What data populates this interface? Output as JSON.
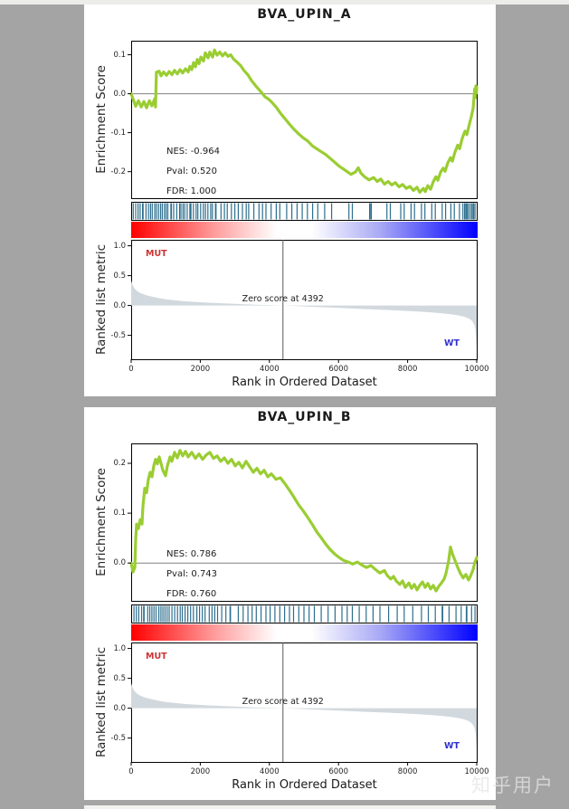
{
  "page": {
    "background_color": "#a4a4a4",
    "card_color": "#ffffff",
    "watermark": "知乎用户"
  },
  "shared": {
    "xlabel": "Rank in Ordered Dataset",
    "es_ylabel": "Enrichment Score",
    "metric_ylabel": "Ranked list metric",
    "pos_label": "MUT",
    "neg_label": "WT",
    "zero_label": "Zero score at 4392",
    "zero_rank": 4392,
    "xmax": 10000,
    "xticks": [
      0,
      2000,
      4000,
      6000,
      8000,
      10000
    ],
    "metric_yticks": [
      1.0,
      0.5,
      0.0,
      -0.5
    ],
    "metric_ylim": [
      -0.9,
      1.1
    ],
    "colors": {
      "es_line": "#9ACD32",
      "hits": "#2d6e8e",
      "area": "#d2d9de",
      "zero_line": "#808080",
      "vline": "#5a5a5a",
      "mut": "#cc3333",
      "wt": "#3333cc",
      "gradient": [
        "#ff0000",
        "#ff9c9c",
        "#ffffff",
        "#a8a8f5",
        "#0000ff"
      ]
    },
    "ranked_metric": [
      [
        0,
        0.42
      ],
      [
        30,
        0.36
      ],
      [
        70,
        0.31
      ],
      [
        120,
        0.27
      ],
      [
        200,
        0.23
      ],
      [
        300,
        0.2
      ],
      [
        450,
        0.17
      ],
      [
        600,
        0.15
      ],
      [
        800,
        0.125
      ],
      [
        1000,
        0.105
      ],
      [
        1250,
        0.088
      ],
      [
        1570,
        0.07
      ],
      [
        1900,
        0.057
      ],
      [
        2300,
        0.045
      ],
      [
        2700,
        0.035
      ],
      [
        3150,
        0.024
      ],
      [
        3600,
        0.014
      ],
      [
        4000,
        0.007
      ],
      [
        4392,
        0.0
      ],
      [
        4800,
        -0.01
      ],
      [
        5300,
        -0.022
      ],
      [
        5800,
        -0.035
      ],
      [
        6300,
        -0.048
      ],
      [
        6800,
        -0.06
      ],
      [
        7300,
        -0.072
      ],
      [
        7800,
        -0.085
      ],
      [
        8300,
        -0.1
      ],
      [
        8700,
        -0.115
      ],
      [
        9000,
        -0.13
      ],
      [
        9300,
        -0.15
      ],
      [
        9500,
        -0.168
      ],
      [
        9650,
        -0.19
      ],
      [
        9780,
        -0.22
      ],
      [
        9870,
        -0.26
      ],
      [
        9930,
        -0.32
      ],
      [
        9960,
        -0.4
      ],
      [
        9980,
        -0.5
      ],
      [
        9990,
        -0.6
      ],
      [
        10000,
        -0.72
      ]
    ]
  },
  "chart_data": [
    {
      "type": "line",
      "title": "BVA_UPIN_A",
      "stats": {
        "nes": "NES: -0.964",
        "pval": "Pval: 0.520",
        "fdr": "FDR: 1.000"
      },
      "es_yticks": [
        0.1,
        0.0,
        -0.1,
        -0.2
      ],
      "es_ylim": [
        -0.268,
        0.136
      ],
      "es_curve": [
        [
          0,
          0.0
        ],
        [
          60,
          -0.015
        ],
        [
          130,
          -0.032
        ],
        [
          210,
          -0.018
        ],
        [
          290,
          -0.034
        ],
        [
          370,
          -0.02
        ],
        [
          445,
          -0.036
        ],
        [
          525,
          -0.018
        ],
        [
          600,
          -0.031
        ],
        [
          680,
          -0.013
        ],
        [
          705,
          -0.034
        ],
        [
          730,
          0.055
        ],
        [
          810,
          0.058
        ],
        [
          865,
          0.046
        ],
        [
          940,
          0.056
        ],
        [
          1020,
          0.047
        ],
        [
          1100,
          0.057
        ],
        [
          1180,
          0.049
        ],
        [
          1255,
          0.06
        ],
        [
          1335,
          0.051
        ],
        [
          1415,
          0.062
        ],
        [
          1490,
          0.053
        ],
        [
          1570,
          0.064
        ],
        [
          1650,
          0.056
        ],
        [
          1700,
          0.07
        ],
        [
          1755,
          0.062
        ],
        [
          1805,
          0.08
        ],
        [
          1860,
          0.069
        ],
        [
          1910,
          0.088
        ],
        [
          1965,
          0.077
        ],
        [
          2015,
          0.094
        ],
        [
          2095,
          0.084
        ],
        [
          2145,
          0.105
        ],
        [
          2225,
          0.092
        ],
        [
          2275,
          0.107
        ],
        [
          2355,
          0.094
        ],
        [
          2410,
          0.112
        ],
        [
          2485,
          0.099
        ],
        [
          2565,
          0.107
        ],
        [
          2645,
          0.097
        ],
        [
          2720,
          0.105
        ],
        [
          2800,
          0.096
        ],
        [
          2880,
          0.1
        ],
        [
          2960,
          0.089
        ],
        [
          3065,
          0.081
        ],
        [
          3170,
          0.072
        ],
        [
          3270,
          0.059
        ],
        [
          3375,
          0.049
        ],
        [
          3480,
          0.034
        ],
        [
          3615,
          0.019
        ],
        [
          3745,
          0.006
        ],
        [
          3875,
          -0.008
        ],
        [
          3980,
          -0.014
        ],
        [
          4060,
          -0.021
        ],
        [
          4190,
          -0.034
        ],
        [
          4320,
          -0.05
        ],
        [
          4450,
          -0.064
        ],
        [
          4580,
          -0.078
        ],
        [
          4710,
          -0.091
        ],
        [
          4845,
          -0.103
        ],
        [
          4975,
          -0.113
        ],
        [
          5105,
          -0.121
        ],
        [
          5235,
          -0.133
        ],
        [
          5365,
          -0.141
        ],
        [
          5630,
          -0.156
        ],
        [
          5840,
          -0.172
        ],
        [
          6020,
          -0.186
        ],
        [
          6205,
          -0.197
        ],
        [
          6360,
          -0.207
        ],
        [
          6490,
          -0.201
        ],
        [
          6570,
          -0.19
        ],
        [
          6650,
          -0.204
        ],
        [
          6755,
          -0.213
        ],
        [
          6885,
          -0.221
        ],
        [
          7015,
          -0.215
        ],
        [
          7120,
          -0.225
        ],
        [
          7225,
          -0.219
        ],
        [
          7330,
          -0.232
        ],
        [
          7435,
          -0.225
        ],
        [
          7540,
          -0.234
        ],
        [
          7645,
          -0.228
        ],
        [
          7750,
          -0.239
        ],
        [
          7855,
          -0.233
        ],
        [
          7960,
          -0.243
        ],
        [
          8065,
          -0.238
        ],
        [
          8170,
          -0.248
        ],
        [
          8270,
          -0.24
        ],
        [
          8350,
          -0.253
        ],
        [
          8455,
          -0.243
        ],
        [
          8510,
          -0.251
        ],
        [
          8585,
          -0.236
        ],
        [
          8665,
          -0.245
        ],
        [
          8745,
          -0.225
        ],
        [
          8820,
          -0.213
        ],
        [
          8875,
          -0.222
        ],
        [
          8955,
          -0.201
        ],
        [
          9030,
          -0.191
        ],
        [
          9085,
          -0.199
        ],
        [
          9160,
          -0.178
        ],
        [
          9240,
          -0.164
        ],
        [
          9295,
          -0.173
        ],
        [
          9370,
          -0.15
        ],
        [
          9450,
          -0.132
        ],
        [
          9505,
          -0.141
        ],
        [
          9580,
          -0.114
        ],
        [
          9660,
          -0.096
        ],
        [
          9715,
          -0.105
        ],
        [
          9790,
          -0.077
        ],
        [
          9845,
          -0.058
        ],
        [
          9895,
          -0.038
        ],
        [
          9920,
          -0.012
        ],
        [
          9940,
          0.012
        ],
        [
          9958,
          -0.01
        ],
        [
          9975,
          0.02
        ],
        [
          9990,
          0.002
        ],
        [
          10000,
          0.016
        ]
      ],
      "hits": [
        60,
        130,
        200,
        260,
        330,
        345,
        430,
        500,
        560,
        610,
        680,
        730,
        790,
        850,
        900,
        960,
        1010,
        1060,
        1150,
        1165,
        1230,
        1320,
        1400,
        1440,
        1500,
        1550,
        1620,
        1700,
        1730,
        1800,
        1880,
        1930,
        2010,
        2090,
        2150,
        2220,
        2300,
        2350,
        2440,
        2455,
        2600,
        2700,
        2780,
        2900,
        3000,
        3100,
        3220,
        3330,
        3400,
        3550,
        3700,
        3800,
        3900,
        4050,
        4200,
        4300,
        4500,
        4650,
        4800,
        4950,
        5100,
        5250,
        5400,
        5600,
        5800,
        6300,
        6400,
        6900,
        6915,
        6950,
        7400,
        7500,
        7800,
        7900,
        8100,
        8200,
        8400,
        8500,
        8700,
        8800,
        9000,
        9100,
        9250,
        9350,
        9500,
        9600,
        9650,
        9662,
        9700,
        9712,
        9750,
        9800,
        9850,
        9862,
        9900,
        9912,
        9950
      ]
    },
    {
      "type": "line",
      "title": "BVA_UPIN_B",
      "stats": {
        "nes": "NES: 0.786",
        "pval": "Pval: 0.743",
        "fdr": "FDR: 0.760"
      },
      "es_yticks": [
        0.2,
        0.1,
        0.0
      ],
      "es_ylim": [
        -0.076,
        0.24
      ],
      "es_curve": [
        [
          0,
          0.0
        ],
        [
          52,
          -0.018
        ],
        [
          105,
          -0.009
        ],
        [
          131,
          0.047
        ],
        [
          157,
          0.078
        ],
        [
          209,
          0.069
        ],
        [
          262,
          0.087
        ],
        [
          314,
          0.078
        ],
        [
          340,
          0.114
        ],
        [
          393,
          0.15
        ],
        [
          445,
          0.141
        ],
        [
          497,
          0.168
        ],
        [
          550,
          0.182
        ],
        [
          602,
          0.173
        ],
        [
          654,
          0.195
        ],
        [
          707,
          0.208
        ],
        [
          759,
          0.199
        ],
        [
          811,
          0.213
        ],
        [
          864,
          0.2
        ],
        [
          916,
          0.186
        ],
        [
          995,
          0.175
        ],
        [
          1047,
          0.195
        ],
        [
          1126,
          0.213
        ],
        [
          1178,
          0.204
        ],
        [
          1257,
          0.222
        ],
        [
          1335,
          0.211
        ],
        [
          1414,
          0.226
        ],
        [
          1492,
          0.215
        ],
        [
          1571,
          0.224
        ],
        [
          1649,
          0.213
        ],
        [
          1754,
          0.222
        ],
        [
          1859,
          0.21
        ],
        [
          1963,
          0.219
        ],
        [
          2068,
          0.208
        ],
        [
          2173,
          0.217
        ],
        [
          2277,
          0.222
        ],
        [
          2382,
          0.21
        ],
        [
          2487,
          0.215
        ],
        [
          2592,
          0.204
        ],
        [
          2696,
          0.211
        ],
        [
          2801,
          0.2
        ],
        [
          2906,
          0.208
        ],
        [
          3010,
          0.195
        ],
        [
          3115,
          0.202
        ],
        [
          3220,
          0.191
        ],
        [
          3325,
          0.204
        ],
        [
          3429,
          0.193
        ],
        [
          3534,
          0.182
        ],
        [
          3639,
          0.19
        ],
        [
          3743,
          0.179
        ],
        [
          3848,
          0.186
        ],
        [
          3953,
          0.173
        ],
        [
          4058,
          0.179
        ],
        [
          4188,
          0.168
        ],
        [
          4319,
          0.171
        ],
        [
          4450,
          0.159
        ],
        [
          4581,
          0.146
        ],
        [
          4712,
          0.132
        ],
        [
          4843,
          0.117
        ],
        [
          4974,
          0.105
        ],
        [
          5105,
          0.092
        ],
        [
          5236,
          0.078
        ],
        [
          5366,
          0.063
        ],
        [
          5497,
          0.051
        ],
        [
          5628,
          0.038
        ],
        [
          5759,
          0.027
        ],
        [
          5890,
          0.018
        ],
        [
          6021,
          0.011
        ],
        [
          6152,
          0.005
        ],
        [
          6283,
          0.002
        ],
        [
          6414,
          -0.002
        ],
        [
          6545,
          0.002
        ],
        [
          6675,
          -0.004
        ],
        [
          6806,
          -0.009
        ],
        [
          6937,
          -0.005
        ],
        [
          7068,
          -0.013
        ],
        [
          7199,
          -0.02
        ],
        [
          7330,
          -0.015
        ],
        [
          7408,
          -0.025
        ],
        [
          7513,
          -0.032
        ],
        [
          7592,
          -0.027
        ],
        [
          7670,
          -0.036
        ],
        [
          7775,
          -0.043
        ],
        [
          7853,
          -0.036
        ],
        [
          7932,
          -0.049
        ],
        [
          8037,
          -0.04
        ],
        [
          8115,
          -0.051
        ],
        [
          8194,
          -0.043
        ],
        [
          8272,
          -0.054
        ],
        [
          8351,
          -0.045
        ],
        [
          8429,
          -0.038
        ],
        [
          8508,
          -0.049
        ],
        [
          8586,
          -0.041
        ],
        [
          8665,
          -0.052
        ],
        [
          8743,
          -0.045
        ],
        [
          8822,
          -0.056
        ],
        [
          8901,
          -0.047
        ],
        [
          8979,
          -0.04
        ],
        [
          9058,
          -0.032
        ],
        [
          9110,
          -0.021
        ],
        [
          9188,
          0.005
        ],
        [
          9241,
          0.032
        ],
        [
          9293,
          0.019
        ],
        [
          9372,
          0.005
        ],
        [
          9450,
          -0.009
        ],
        [
          9529,
          -0.021
        ],
        [
          9607,
          -0.03
        ],
        [
          9686,
          -0.023
        ],
        [
          9765,
          -0.034
        ],
        [
          9817,
          -0.027
        ],
        [
          9895,
          -0.013
        ],
        [
          9948,
          0.002
        ],
        [
          10000,
          0.011
        ]
      ],
      "hits": [
        80,
        150,
        220,
        300,
        360,
        375,
        480,
        540,
        600,
        660,
        720,
        800,
        860,
        920,
        980,
        1040,
        1100,
        1180,
        1260,
        1340,
        1420,
        1480,
        1560,
        1640,
        1720,
        1800,
        1900,
        1980,
        2060,
        2140,
        2260,
        2340,
        2420,
        2500,
        2620,
        2740,
        2860,
        2875,
        3100,
        3240,
        3380,
        3500,
        3620,
        3760,
        3900,
        4020,
        4160,
        4300,
        4440,
        4580,
        4700,
        4850,
        5000,
        5150,
        5300,
        5500,
        5700,
        5900,
        6100,
        6250,
        6400,
        6600,
        6800,
        7000,
        7200,
        7450,
        7700,
        7900,
        8150,
        8400,
        8600,
        8800,
        9000,
        9015,
        9200,
        9400,
        9550,
        9700,
        9715,
        9850,
        9950
      ]
    }
  ]
}
